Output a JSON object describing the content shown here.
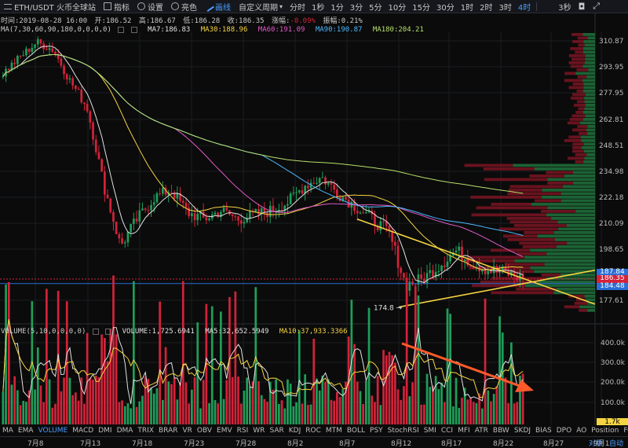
{
  "toolbar": {
    "symbol": "ETH/USDT 火币全球站",
    "indicators": "指标",
    "settings": "设置",
    "color": "亮色",
    "draw": "画线",
    "custom_period": "自定义周期",
    "timeframes": [
      "分时",
      "1秒",
      "1分",
      "3分",
      "5分",
      "10分",
      "15分",
      "30分",
      "1时",
      "2时",
      "3时",
      "4时"
    ],
    "active_timeframe": "4时",
    "right_item": "3秒"
  },
  "info": {
    "time": "时间:2019-08-28 16:00",
    "open": "开:186.52",
    "high": "高:186.67",
    "low": "低:186.28",
    "close": "收:186.35",
    "change_label": "涨幅:",
    "change": "-0.09%",
    "amplitude": "振幅:0.21%"
  },
  "ma_legend": {
    "params": "MA(7,30,60,90,180,0,0,0,0)",
    "ma7": "MA7:186.83",
    "ma30": "MA30:188.96",
    "ma60": "MA60:191.09",
    "ma90": "MA90:190.87",
    "ma180": "MA180:204.21"
  },
  "volume_legend": {
    "params": "VOLUME(5,10,0,0,0,0)",
    "volume": "VOLUME:1,725.6941",
    "ma5": "MA5:32,652.5949",
    "ma10": "MA10:37,933.3366"
  },
  "indicators_bar": [
    "MA",
    "EMA",
    "VOLUME",
    "MACD",
    "DMI",
    "DMA",
    "TRIX",
    "BRAR",
    "VR",
    "OBV",
    "EMV",
    "RSI",
    "WR",
    "SAR",
    "KDJ",
    "ROC",
    "MTM",
    "BOLL",
    "PSY",
    "StochRSI",
    "SMI",
    "CCI",
    "MFI",
    "ATR",
    "BBW",
    "SKDJ",
    "BIAS",
    "DPO",
    "AO",
    "Position",
    "Fund-flow"
  ],
  "active_indicator": "VOLUME",
  "date_axis": [
    "7月8",
    "7月13",
    "7月18",
    "7月23",
    "7月28",
    "8月2",
    "8月7",
    "8月12",
    "8月17",
    "8月22",
    "8月27",
    "9月1"
  ],
  "axis_controls": {
    "log": "对数",
    "auto": "自动"
  },
  "colors": {
    "up": "#1f9e5a",
    "down": "#d2233a",
    "accent": "#4d9dff",
    "trend": "#f5d442",
    "arrow": "#ff5a2a"
  },
  "current_price": "186.35",
  "price_tag2": "184.48",
  "price_tag3": "187.84",
  "low_annotation": "174.8",
  "volume_tag": "1.7k",
  "chart_data": {
    "type": "candlestick",
    "title": "ETH/USDT 火币全球站",
    "interval": "4时",
    "y_ticks": [
      310.87,
      293.95,
      277.95,
      262.81,
      248.51,
      234.98,
      222.18,
      210.09,
      198.65,
      177.61
    ],
    "volume_ticks": [
      "400.0k",
      "300.0k",
      "200.0k",
      "100.0k"
    ],
    "x_labels": [
      "7月8",
      "7月13",
      "7月18",
      "7月23",
      "7月28",
      "8月2",
      "8月7",
      "8月12",
      "8月17",
      "8月22",
      "8月27",
      "9月1"
    ],
    "close_path": [
      [
        "7月5",
        290
      ],
      [
        "7月8",
        300
      ],
      [
        "7月10",
        310
      ],
      [
        "7月11",
        305
      ],
      [
        "7月12",
        285
      ],
      [
        "7月13",
        270
      ],
      [
        "7月15",
        228
      ],
      [
        "7月16",
        200
      ],
      [
        "7月17",
        212
      ],
      [
        "7月18",
        222
      ],
      [
        "7月20",
        226
      ],
      [
        "7月22",
        215
      ],
      [
        "7月24",
        212
      ],
      [
        "7月26",
        216
      ],
      [
        "7月28",
        212
      ],
      [
        "7月30",
        214
      ],
      [
        "8月1",
        216
      ],
      [
        "8月3",
        220
      ],
      [
        "8月5",
        228
      ],
      [
        "8月7",
        232
      ],
      [
        "8月8",
        224
      ],
      [
        "8月10",
        218
      ],
      [
        "8月12",
        212
      ],
      [
        "8月14",
        206
      ],
      [
        "8月15",
        184
      ],
      [
        "8月17",
        186
      ],
      [
        "8月19",
        192
      ],
      [
        "8月21",
        198
      ],
      [
        "8月22",
        193
      ],
      [
        "8月24",
        190
      ],
      [
        "8月26",
        189
      ],
      [
        "8月28",
        186.35
      ]
    ],
    "last_close": 186.35,
    "low_mark": 174.8,
    "ma": {
      "MA7": 186.83,
      "MA30": 188.96,
      "MA60": 191.09,
      "MA90": 190.87,
      "MA180": 204.21
    },
    "volume": {
      "last": 1725.6941,
      "MA5": 32652.5949,
      "MA10": 37933.3366
    },
    "ylim": [
      170,
      320
    ]
  }
}
